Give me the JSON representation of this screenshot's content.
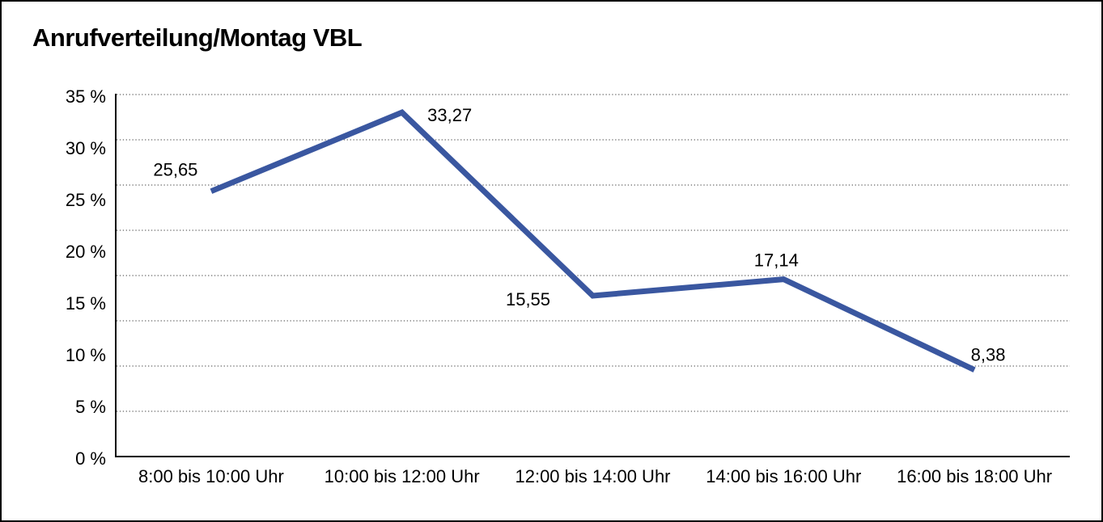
{
  "title": "Anrufverteilung/Montag VBL",
  "chart_data": {
    "type": "line",
    "title": "Anrufverteilung/Montag VBL",
    "categories": [
      "8:00 bis 10:00 Uhr",
      "10:00 bis 12:00 Uhr",
      "12:00 bis 14:00 Uhr",
      "14:00 bis 16:00 Uhr",
      "16:00 bis 18:00 Uhr"
    ],
    "series": [
      {
        "name": "Anrufverteilung Montag VBL",
        "values": [
          25.65,
          33.27,
          15.55,
          17.14,
          8.38
        ],
        "color": "#3A57A0"
      }
    ],
    "value_labels": [
      "25,65",
      "33,27",
      "15,55",
      "17,14",
      "8,38"
    ],
    "value_label_positions": [
      "above-left",
      "right",
      "left",
      "above",
      "above-right"
    ],
    "decimal_separator": ",",
    "xlabel": "",
    "ylabel": "",
    "ylim": [
      0,
      35
    ],
    "y_ticks": [
      35,
      30,
      25,
      20,
      15,
      10,
      5,
      0
    ],
    "y_tick_labels": [
      "35 %",
      "30 %",
      "25 %",
      "20 %",
      "15 %",
      "10 %",
      "5 %",
      "0 %"
    ],
    "grid": "horizontal-dotted-8-divisions",
    "legend": "none",
    "markers": "none"
  },
  "colors": {
    "line": "#3A57A0",
    "grid_dots": "#666666",
    "axis": "#000000",
    "text": "#000000",
    "background": "#FFFFFF",
    "frame_border": "#000000"
  }
}
